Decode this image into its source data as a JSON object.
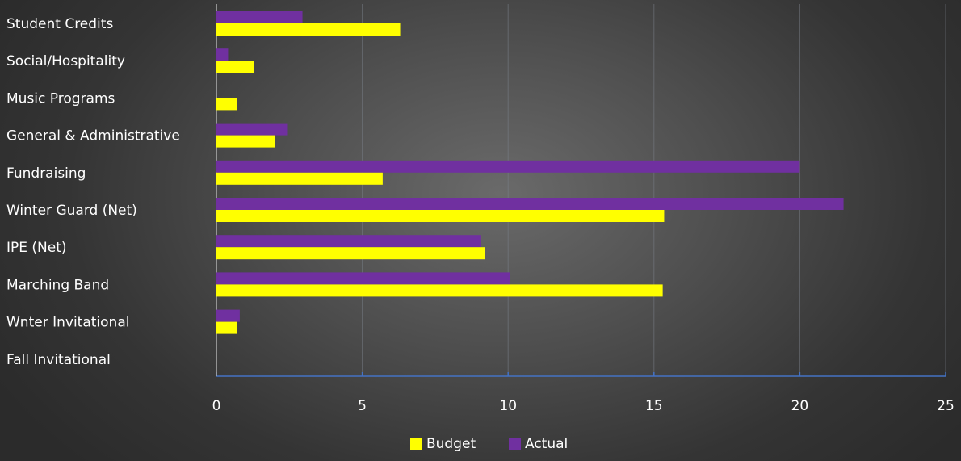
{
  "chart_data": {
    "type": "bar",
    "orientation": "horizontal",
    "categories": [
      "Student Credits",
      "Social/Hospitality",
      "Music Programs",
      "General & Administrative",
      "Fundraising",
      "Winter Guard (Net)",
      "IPE (Net)",
      "Marching Band",
      "Wnter Invitational",
      "Fall Invitational"
    ],
    "series": [
      {
        "name": "Actual",
        "color": "#7030a0",
        "values": [
          2.95,
          0.4,
          0,
          2.45,
          20,
          21.5,
          9.05,
          10.05,
          0.8,
          0
        ]
      },
      {
        "name": "Budget",
        "color": "#ffff00",
        "values": [
          6.3,
          1.3,
          0.7,
          2.0,
          5.7,
          15.35,
          9.2,
          15.3,
          0.7,
          0
        ]
      }
    ],
    "xlim": [
      0,
      25
    ],
    "xticks": [
      0,
      5,
      10,
      15,
      20,
      25
    ],
    "grid": true,
    "legend_position": "bottom",
    "legend_order": [
      "Budget",
      "Actual"
    ],
    "title": "",
    "xlabel": "",
    "ylabel": ""
  }
}
